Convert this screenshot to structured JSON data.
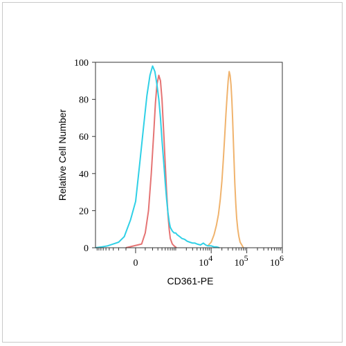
{
  "chart_data": {
    "type": "line",
    "xlabel": "CD361-PE",
    "ylabel": "Relative Cell Number",
    "x_scale": "biexponential",
    "xlim": [
      -1000,
      1000000
    ],
    "ylim": [
      0,
      100
    ],
    "grid": false,
    "x_ticks": [
      {
        "value": 0,
        "base": "0",
        "exp": ""
      },
      {
        "value": 10000,
        "base": "10",
        "exp": "4"
      },
      {
        "value": 100000,
        "base": "10",
        "exp": "5"
      },
      {
        "value": 1000000,
        "base": "10",
        "exp": "6"
      }
    ],
    "y_ticks": [
      0,
      20,
      40,
      60,
      80,
      100
    ],
    "series": [
      {
        "color": "#e57373",
        "x": [
          -100,
          60,
          100,
          140,
          180,
          220,
          250,
          280,
          320,
          360,
          400,
          450,
          500,
          550,
          600,
          650,
          700,
          800,
          900,
          1050
        ],
        "y": [
          0,
          2,
          8,
          20,
          40,
          62,
          78,
          88,
          93,
          90,
          80,
          62,
          45,
          30,
          18,
          10,
          5,
          2,
          1,
          0
        ]
      },
      {
        "color": "#f0b36d",
        "x": [
          8000,
          10000,
          12000,
          14000,
          16000,
          18000,
          20000,
          22000,
          24000,
          26000,
          28000,
          30000,
          32000,
          34000,
          36000,
          38000,
          40000,
          42000,
          44000,
          46000,
          49000,
          52000,
          56000,
          60000,
          65000,
          70000,
          75000,
          80000
        ],
        "y": [
          1,
          3,
          7,
          12,
          18,
          26,
          36,
          48,
          60,
          72,
          82,
          90,
          95,
          93,
          88,
          80,
          70,
          58,
          46,
          35,
          24,
          16,
          10,
          6,
          3,
          2,
          1,
          0
        ]
      },
      {
        "color": "#2fd0e6",
        "x": [
          -1000,
          -650,
          -450,
          -300,
          -200,
          -120,
          -50,
          0,
          40,
          80,
          120,
          160,
          200,
          240,
          280,
          320,
          360,
          400,
          450,
          500,
          550,
          600,
          650,
          700,
          800,
          900,
          1000,
          1100,
          1300,
          1500,
          1800,
          2100,
          2500,
          3000,
          3500,
          4000,
          5000,
          6000,
          7000,
          8000,
          10000,
          12000,
          14000,
          17000
        ],
        "y": [
          0,
          0.5,
          1,
          2,
          3,
          6,
          15,
          25,
          45,
          65,
          82,
          93,
          98,
          95,
          88,
          80,
          70,
          58,
          46,
          35,
          26,
          19,
          14,
          11,
          9,
          8,
          8,
          7,
          6,
          5,
          4.5,
          3.5,
          3,
          2.5,
          2.5,
          2,
          1.5,
          2.5,
          1.5,
          1,
          1,
          0.5,
          0.5,
          0
        ]
      }
    ]
  }
}
